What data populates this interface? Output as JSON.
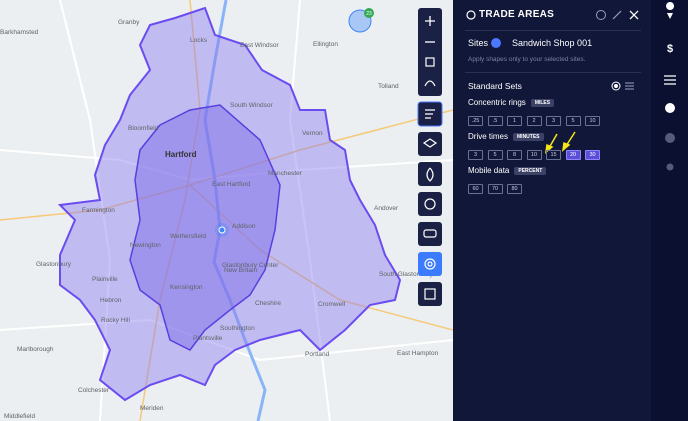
{
  "map": {
    "cluster_count": "23",
    "labels": [
      "Barkhamsted",
      "Granby",
      "Locks",
      "East Windsor",
      "Ellington",
      "Tolland",
      "South Windsor",
      "Bloomfield",
      "Vernon",
      "Hartford",
      "East Hartford",
      "Manchester",
      "Farmington",
      "Andover",
      "Wethersfield",
      "Addison",
      "Glastonbury Center",
      "Newington",
      "Glastonbury",
      "Plainville",
      "New Britain",
      "South Glastonbury",
      "Hebron",
      "Kensington",
      "Rocky Hill",
      "Southington",
      "Cromwell",
      "Marlborough",
      "Plantsville",
      "Portland",
      "East Hampton",
      "Colchester",
      "Meriden",
      "Middlefield",
      "Cheshire"
    ]
  },
  "panel": {
    "title": "TRADE AREAS",
    "sites_label": "Sites",
    "site_name": "Sandwich Shop 001",
    "hint": "Apply shapes only to your selected sites.",
    "standard_sets": "Standard Sets",
    "groups": [
      {
        "name": "Concentric rings",
        "unit": "MILES",
        "options": [
          ".25",
          ".5",
          "1",
          "2",
          "3",
          "5",
          "10"
        ],
        "selected": []
      },
      {
        "name": "Drive times",
        "unit": "MINUTES",
        "options": [
          "3",
          "5",
          "8",
          "10",
          "15",
          "20",
          "30"
        ],
        "selected": [
          "20",
          "30"
        ]
      },
      {
        "name": "Mobile data",
        "unit": "PERCENT",
        "options": [
          "60",
          "70",
          "80"
        ],
        "selected": []
      }
    ]
  },
  "sidebar": {
    "dollar": "$"
  }
}
